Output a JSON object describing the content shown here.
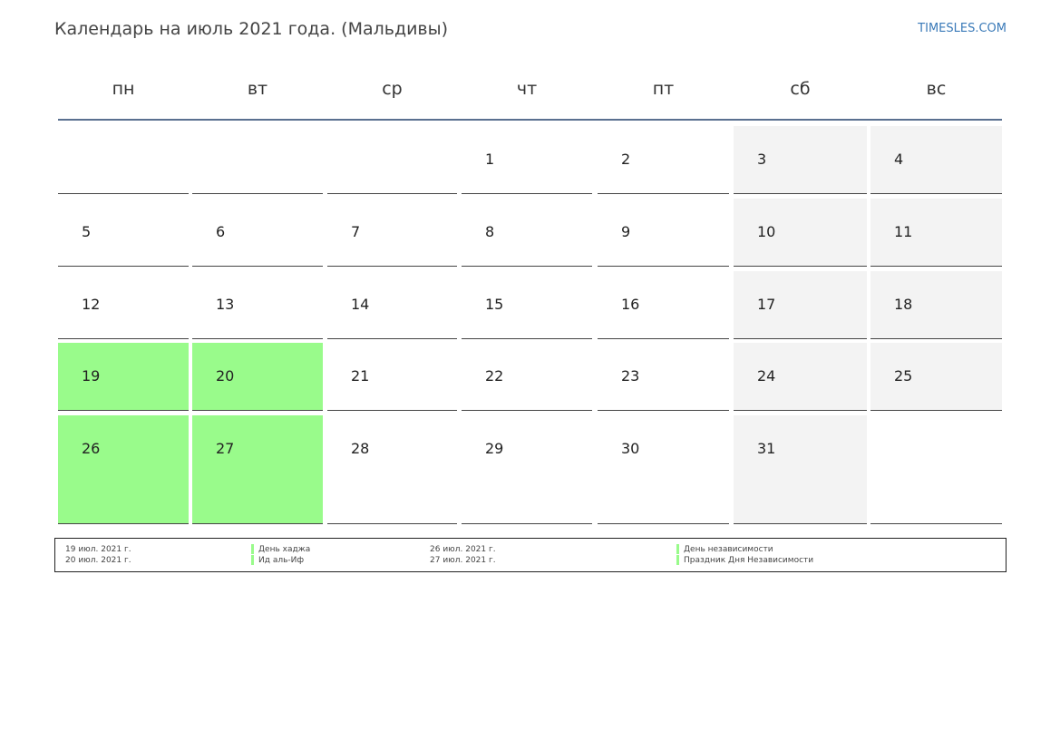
{
  "header": {
    "title": "Календарь на июль 2021 года. (Мальдивы)",
    "site": "TIMESLES.COM"
  },
  "weekdays": [
    "пн",
    "вт",
    "ср",
    "чт",
    "пт",
    "сб",
    "вс"
  ],
  "weekend_color": "#f3f3f3",
  "holiday_color": "#99fb8b",
  "weeks": [
    [
      null,
      null,
      null,
      {
        "day": 1
      },
      {
        "day": 2
      },
      {
        "day": 3
      },
      {
        "day": 4
      }
    ],
    [
      {
        "day": 5
      },
      {
        "day": 6
      },
      {
        "day": 7
      },
      {
        "day": 8
      },
      {
        "day": 9
      },
      {
        "day": 10
      },
      {
        "day": 11
      }
    ],
    [
      {
        "day": 12
      },
      {
        "day": 13
      },
      {
        "day": 14
      },
      {
        "day": 15
      },
      {
        "day": 16
      },
      {
        "day": 17
      },
      {
        "day": 18
      }
    ],
    [
      {
        "day": 19,
        "holiday": true
      },
      {
        "day": 20,
        "holiday": true
      },
      {
        "day": 21
      },
      {
        "day": 22
      },
      {
        "day": 23
      },
      {
        "day": 24
      },
      {
        "day": 25
      }
    ],
    [
      {
        "day": 26,
        "holiday": true
      },
      {
        "day": 27,
        "holiday": true
      },
      {
        "day": 28
      },
      {
        "day": 29
      },
      {
        "day": 30
      },
      {
        "day": 31
      },
      null
    ]
  ],
  "legend": [
    {
      "date": "19 июл. 2021 г.",
      "name": "День хаджа"
    },
    {
      "date": "20 июл. 2021 г.",
      "name": "Ид аль-Иф"
    },
    {
      "date": "26 июл. 2021 г.",
      "name": "День независимости"
    },
    {
      "date": "27 июл. 2021 г.",
      "name": "Праздник Дня Независимости"
    }
  ]
}
